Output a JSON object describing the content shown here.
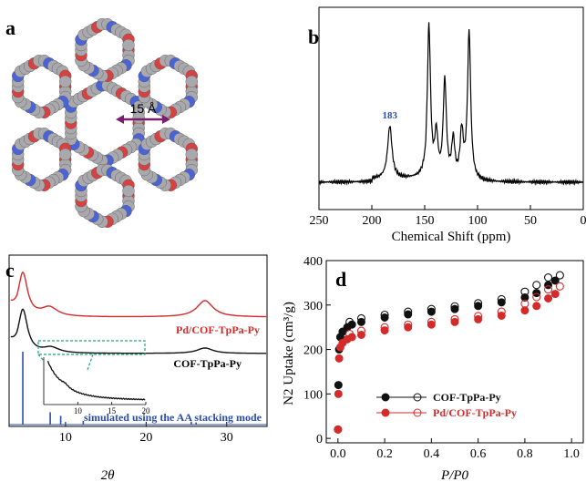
{
  "panels": {
    "a": {
      "label": "a",
      "pore_label": "15 Å"
    },
    "b": {
      "label": "b"
    },
    "c": {
      "label": "c"
    },
    "d": {
      "label": "d"
    }
  },
  "colors": {
    "black": "#111111",
    "red": "#d42a2a",
    "blue": "#2b4ea8",
    "green": "#1fa37a",
    "purple": "#7a1f6e",
    "atom_gray": "#a9a9ad",
    "atom_red": "#d94040",
    "atom_blue": "#4a63d8"
  },
  "chart_data": [
    {
      "panel": "b",
      "type": "line",
      "xlabel": "Chemical Shift (ppm)",
      "xlim": [
        250,
        0
      ],
      "x_reversed": true,
      "xticks": [
        250,
        200,
        150,
        100,
        50,
        0
      ],
      "annotations": [
        {
          "text": "183",
          "x": 183
        }
      ],
      "peaks": [
        {
          "x": 183,
          "height": 0.34
        },
        {
          "x": 146,
          "height": 1.0
        },
        {
          "x": 139,
          "height": 0.28
        },
        {
          "x": 131,
          "height": 0.64
        },
        {
          "x": 123,
          "height": 0.25
        },
        {
          "x": 115,
          "height": 0.3
        },
        {
          "x": 108,
          "height": 0.96
        }
      ]
    },
    {
      "panel": "c",
      "type": "line",
      "xlabel": "2θ",
      "xlim": [
        3,
        35
      ],
      "xticks": [
        10,
        20,
        30
      ],
      "series": [
        {
          "name": "Pd/COF-TpPa-Py",
          "color": "#d42a2a",
          "peaks": [
            {
              "x": 4.7,
              "height": 0.24
            },
            {
              "x": 8.0,
              "height": 0.05
            },
            {
              "x": 27.3,
              "height": 0.09
            }
          ]
        },
        {
          "name": "COF-TpPa-Py",
          "color": "#111111",
          "peaks": [
            {
              "x": 4.7,
              "height": 0.24
            },
            {
              "x": 8.2,
              "height": 0.03
            },
            {
              "x": 27.3,
              "height": 0.03
            }
          ]
        },
        {
          "name": "simulated using the AA stacking mode",
          "color": "#2b4ea8",
          "x": [
            4.7,
            8.1,
            9.4,
            12.2,
            25.6,
            26.2
          ],
          "values": [
            1.0,
            0.17,
            0.12,
            0.05,
            0.04,
            0.03
          ]
        }
      ],
      "inset": {
        "xlim": [
          5,
          20
        ],
        "xticks": [
          10,
          15,
          20
        ]
      }
    },
    {
      "panel": "d",
      "type": "scatter",
      "xlabel": "P/P0",
      "ylabel": "N2 Uptake (cm³/g)",
      "xlim": [
        -0.05,
        1.05
      ],
      "ylim": [
        -10,
        400
      ],
      "xticks": [
        0.0,
        0.2,
        0.4,
        0.6,
        0.8,
        1.0
      ],
      "yticks": [
        0,
        100,
        200,
        300,
        400
      ],
      "legend_position": "bottom-center",
      "series": [
        {
          "name": "COF-TpPa-Py",
          "color": "#111111",
          "adsorption": {
            "x": [
              0.0,
              0.002,
              0.005,
              0.01,
              0.02,
              0.04,
              0.06,
              0.1,
              0.2,
              0.3,
              0.4,
              0.5,
              0.6,
              0.7,
              0.8,
              0.85,
              0.9,
              0.93
            ],
            "values": [
              20,
              120,
              200,
              228,
              240,
              250,
              256,
              262,
              272,
              279,
              285,
              291,
              298,
              306,
              317,
              327,
              345,
              355
            ]
          },
          "desorption": {
            "x": [
              0.05,
              0.1,
              0.2,
              0.3,
              0.4,
              0.5,
              0.6,
              0.7,
              0.8,
              0.85,
              0.9,
              0.95
            ],
            "values": [
              262,
              270,
              278,
              285,
              291,
              297,
              304,
              313,
              330,
              345,
              362,
              367
            ]
          }
        },
        {
          "name": "Pd/COF-TpPa-Py",
          "color": "#d42a2a",
          "adsorption": {
            "x": [
              0.0,
              0.002,
              0.005,
              0.01,
              0.02,
              0.04,
              0.06,
              0.1,
              0.2,
              0.3,
              0.4,
              0.5,
              0.6,
              0.7,
              0.8,
              0.85,
              0.9,
              0.93
            ],
            "values": [
              20,
              100,
              180,
              205,
              215,
              223,
              228,
              233,
              243,
              250,
              256,
              262,
              268,
              276,
              288,
              298,
              315,
              325
            ]
          },
          "desorption": {
            "x": [
              0.05,
              0.1,
              0.2,
              0.3,
              0.4,
              0.5,
              0.6,
              0.7,
              0.8,
              0.85,
              0.9,
              0.95
            ],
            "values": [
              235,
              242,
              250,
              256,
              262,
              268,
              275,
              285,
              303,
              318,
              335,
              342
            ]
          }
        }
      ]
    }
  ]
}
